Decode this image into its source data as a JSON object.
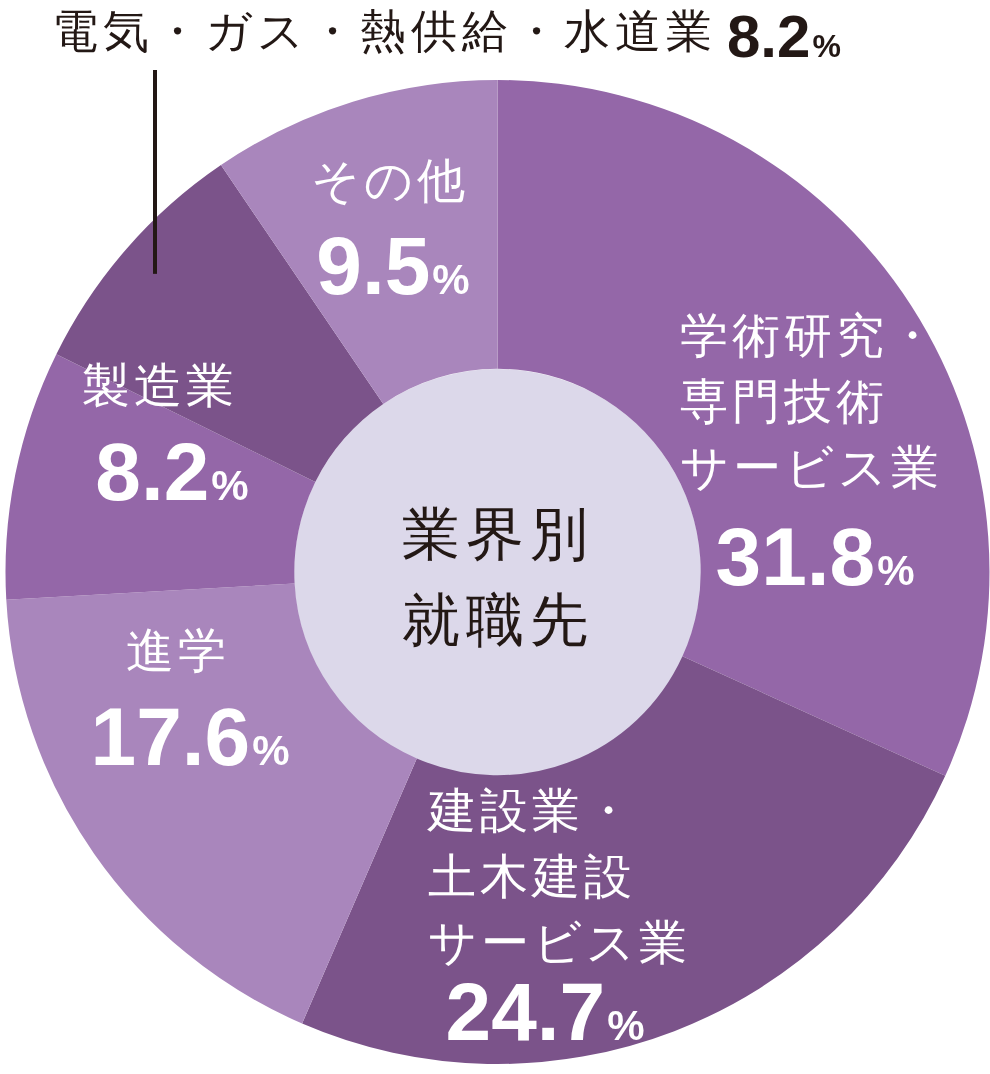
{
  "chart_data": {
    "type": "donut",
    "title": "業界別就職先",
    "categories": [
      "学術研究・専門技術サービス業",
      "建設業・土木建設サービス業",
      "進学",
      "製造業",
      "電気・ガス・熱供給・水道業",
      "その他"
    ],
    "values": [
      31.8,
      24.7,
      17.6,
      8.2,
      8.2,
      9.5
    ],
    "colors": [
      "#9467a8",
      "#7b538a",
      "#a986bc",
      "#9467a8",
      "#7b538a",
      "#a986bc"
    ],
    "value_labels": [
      "31.8%",
      "24.7%",
      "17.6%",
      "8.2%",
      "8.2%",
      "9.5%"
    ]
  }
}
